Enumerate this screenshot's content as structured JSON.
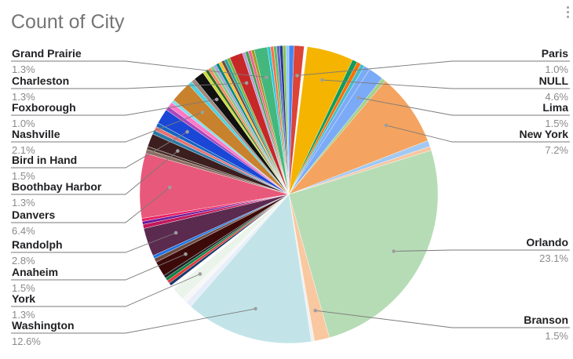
{
  "chart_data": {
    "type": "pie",
    "title": "Count of City",
    "labeled_slices": [
      {
        "name": "Paris",
        "pct_label": "1.0%",
        "value": 1.0
      },
      {
        "name": "NULL",
        "pct_label": "4.6%",
        "value": 4.6
      },
      {
        "name": "Lima",
        "pct_label": "1.5%",
        "value": 1.5
      },
      {
        "name": "New York",
        "pct_label": "7.2%",
        "value": 7.2
      },
      {
        "name": "Orlando",
        "pct_label": "23.1%",
        "value": 23.1
      },
      {
        "name": "Branson",
        "pct_label": "1.5%",
        "value": 1.5
      },
      {
        "name": "Washington",
        "pct_label": "12.6%",
        "value": 12.6
      },
      {
        "name": "York",
        "pct_label": "1.3%",
        "value": 1.3
      },
      {
        "name": "Anaheim",
        "pct_label": "1.5%",
        "value": 1.5
      },
      {
        "name": "Randolph",
        "pct_label": "2.8%",
        "value": 2.8
      },
      {
        "name": "Danvers",
        "pct_label": "6.4%",
        "value": 6.4
      },
      {
        "name": "Boothbay Harbor",
        "pct_label": "1.3%",
        "value": 1.3
      },
      {
        "name": "Bird in Hand",
        "pct_label": "1.5%",
        "value": 1.5
      },
      {
        "name": "Nashville",
        "pct_label": "2.1%",
        "value": 2.1
      },
      {
        "name": "Foxborough",
        "pct_label": "1.0%",
        "value": 1.0
      },
      {
        "name": "Charleston",
        "pct_label": "1.3%",
        "value": 1.3
      },
      {
        "name": "Grand Prairie",
        "pct_label": "1.3%",
        "value": 1.3
      }
    ],
    "slices": [
      {
        "label": "",
        "value": 0.5,
        "color": "#4285f4"
      },
      {
        "label": "Paris",
        "value": 1.0,
        "color": "#db4437"
      },
      {
        "label": "",
        "value": 0.3,
        "color": "#ffffff"
      },
      {
        "label": "NULL",
        "value": 4.6,
        "color": "#f4b400"
      },
      {
        "label": "",
        "value": 0.5,
        "color": "#0f9d58"
      },
      {
        "label": "",
        "value": 0.4,
        "color": "#ff6d00"
      },
      {
        "label": "",
        "value": 0.4,
        "color": "#46bdc6"
      },
      {
        "label": "",
        "value": 0.6,
        "color": "#7baaf7"
      },
      {
        "label": "Lima",
        "value": 1.5,
        "color": "#7baaf7"
      },
      {
        "label": "",
        "value": 0.4,
        "color": "#a8d08d"
      },
      {
        "label": "New York",
        "value": 7.2,
        "color": "#f4a460"
      },
      {
        "label": "",
        "value": 0.6,
        "color": "#a1c9f4"
      },
      {
        "label": "",
        "value": 0.4,
        "color": "#f6c6a0"
      },
      {
        "label": "Orlando",
        "value": 23.1,
        "color": "#b6dcb6"
      },
      {
        "label": "Branson",
        "value": 1.5,
        "color": "#f9c8a0"
      },
      {
        "label": "",
        "value": 0.3,
        "color": "#f0f0f0"
      },
      {
        "label": "Washington",
        "value": 12.6,
        "color": "#c2e4e8"
      },
      {
        "label": "",
        "value": 0.6,
        "color": "#e8eef9"
      },
      {
        "label": "",
        "value": 0.5,
        "color": "#f7f7f7"
      },
      {
        "label": "York",
        "value": 1.3,
        "color": "#eaf4ea"
      },
      {
        "label": "",
        "value": 0.4,
        "color": "#ffffff"
      },
      {
        "label": "",
        "value": 0.3,
        "color": "#1a3a6b"
      },
      {
        "label": "",
        "value": 0.3,
        "color": "#e53935"
      },
      {
        "label": "",
        "value": 0.3,
        "color": "#0b8043"
      },
      {
        "label": "",
        "value": 0.3,
        "color": "#202124"
      },
      {
        "label": "Anaheim",
        "value": 1.5,
        "color": "#3d0a0a"
      },
      {
        "label": "",
        "value": 0.4,
        "color": "#6d4c41"
      },
      {
        "label": "",
        "value": 0.3,
        "color": "#1a73e8"
      },
      {
        "label": "Randolph",
        "value": 2.8,
        "color": "#5b2a4f"
      },
      {
        "label": "",
        "value": 0.4,
        "color": "#c2185b"
      },
      {
        "label": "",
        "value": 0.3,
        "color": "#6a1b9a"
      },
      {
        "label": "",
        "value": 0.3,
        "color": "#e91e63"
      },
      {
        "label": "Danvers",
        "value": 6.4,
        "color": "#e8587a"
      },
      {
        "label": "",
        "value": 0.4,
        "color": "#8d6e63"
      },
      {
        "label": "",
        "value": 0.3,
        "color": "#4e342e"
      },
      {
        "label": "Boothbay Harbor",
        "value": 1.3,
        "color": "#3c1e1e"
      },
      {
        "label": "",
        "value": 0.4,
        "color": "#2b78a6"
      },
      {
        "label": "",
        "value": 0.4,
        "color": "#e57373"
      },
      {
        "label": "",
        "value": 0.4,
        "color": "#1565c0"
      },
      {
        "label": "Bird in Hand",
        "value": 1.5,
        "color": "#1a47d6"
      },
      {
        "label": "",
        "value": 0.4,
        "color": "#ab47bc"
      },
      {
        "label": "",
        "value": 0.5,
        "color": "#ff79c6"
      },
      {
        "label": "",
        "value": 0.3,
        "color": "#80deea"
      },
      {
        "label": "Nashville",
        "value": 2.1,
        "color": "#c8812d"
      },
      {
        "label": "",
        "value": 0.4,
        "color": "#4dd0e1"
      },
      {
        "label": "",
        "value": 0.4,
        "color": "#a1887f"
      },
      {
        "label": "Foxborough",
        "value": 1.0,
        "color": "#111111"
      },
      {
        "label": "",
        "value": 0.3,
        "color": "#cddc39"
      },
      {
        "label": "",
        "value": 0.3,
        "color": "#33691e"
      },
      {
        "label": "",
        "value": 0.3,
        "color": "#ff8a65"
      },
      {
        "label": "",
        "value": 0.3,
        "color": "#81c784"
      },
      {
        "label": "",
        "value": 0.3,
        "color": "#9fa8da"
      },
      {
        "label": "",
        "value": 0.3,
        "color": "#00897b"
      },
      {
        "label": "",
        "value": 0.3,
        "color": "#fbc02d"
      },
      {
        "label": "",
        "value": 0.3,
        "color": "#6d4c41"
      },
      {
        "label": "",
        "value": 0.3,
        "color": "#26a69a"
      },
      {
        "label": "",
        "value": 0.3,
        "color": "#7cb342"
      },
      {
        "label": "Charleston",
        "value": 1.3,
        "color": "#c62828"
      },
      {
        "label": "",
        "value": 0.3,
        "color": "#b39ddb"
      },
      {
        "label": "",
        "value": 0.3,
        "color": "#43a047"
      },
      {
        "label": "",
        "value": 0.3,
        "color": "#f06292"
      },
      {
        "label": "",
        "value": 0.3,
        "color": "#9e9d24"
      },
      {
        "label": "Grand Prairie",
        "value": 1.3,
        "color": "#43b77e"
      },
      {
        "label": "",
        "value": 0.3,
        "color": "#26c6da"
      },
      {
        "label": "",
        "value": 0.3,
        "color": "#ff7043"
      },
      {
        "label": "",
        "value": 0.3,
        "color": "#66bb6a"
      },
      {
        "label": "",
        "value": 0.3,
        "color": "#5c6bc0"
      },
      {
        "label": "",
        "value": 0.3,
        "color": "#283593"
      },
      {
        "label": "",
        "value": 0.3,
        "color": "#8bc34a"
      },
      {
        "label": "",
        "value": 0.3,
        "color": "#90caf9"
      }
    ]
  }
}
